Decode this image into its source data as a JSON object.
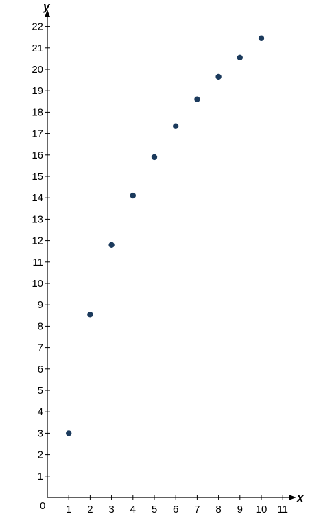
{
  "chart_data": {
    "type": "scatter",
    "title": "",
    "xlabel": "x",
    "ylabel": "y",
    "origin_label": "0",
    "xlim": [
      0,
      11
    ],
    "ylim": [
      0,
      22
    ],
    "x_ticks": [
      "1",
      "2",
      "3",
      "4",
      "5",
      "6",
      "7",
      "8",
      "9",
      "10",
      "11"
    ],
    "y_ticks": [
      "1",
      "2",
      "3",
      "4",
      "5",
      "6",
      "7",
      "8",
      "9",
      "10",
      "11",
      "12",
      "13",
      "14",
      "15",
      "16",
      "17",
      "18",
      "19",
      "20",
      "21",
      "22"
    ],
    "grid": false,
    "point_color": "#1b3a5c",
    "axis_color": "#000000",
    "points": [
      {
        "x": 1,
        "y": 3.0
      },
      {
        "x": 2,
        "y": 8.55
      },
      {
        "x": 3,
        "y": 11.8
      },
      {
        "x": 4,
        "y": 14.1
      },
      {
        "x": 5,
        "y": 15.9
      },
      {
        "x": 6,
        "y": 17.35
      },
      {
        "x": 7,
        "y": 18.6
      },
      {
        "x": 8,
        "y": 19.65
      },
      {
        "x": 9,
        "y": 20.55
      },
      {
        "x": 10,
        "y": 21.45
      }
    ]
  }
}
